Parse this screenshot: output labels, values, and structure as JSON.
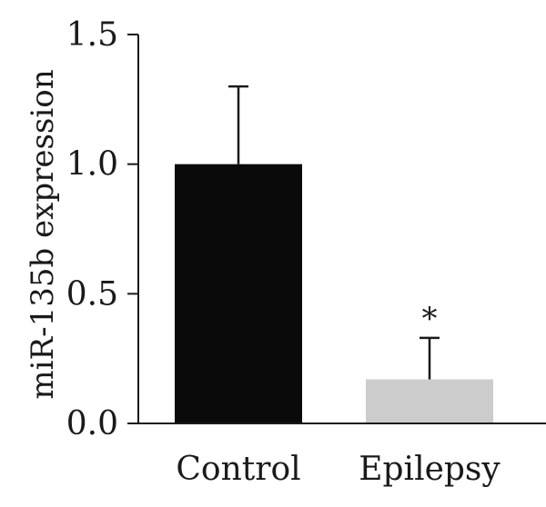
{
  "chart_data": {
    "type": "bar",
    "title": "",
    "xlabel": "",
    "ylabel": "miR-135b expression",
    "ylim": [
      0,
      1.5
    ],
    "yticks": [
      "0.0",
      "0.5",
      "1.0",
      "1.5"
    ],
    "categories": [
      "Control",
      "Epilepsy"
    ],
    "values": [
      1.0,
      0.17
    ],
    "error_upper": [
      1.3,
      0.33
    ],
    "bar_colors": [
      "#0a0a0a",
      "#cccccc"
    ],
    "annotations": [
      {
        "category": "Epilepsy",
        "text": "*"
      }
    ],
    "grid": false,
    "legend": "none"
  }
}
